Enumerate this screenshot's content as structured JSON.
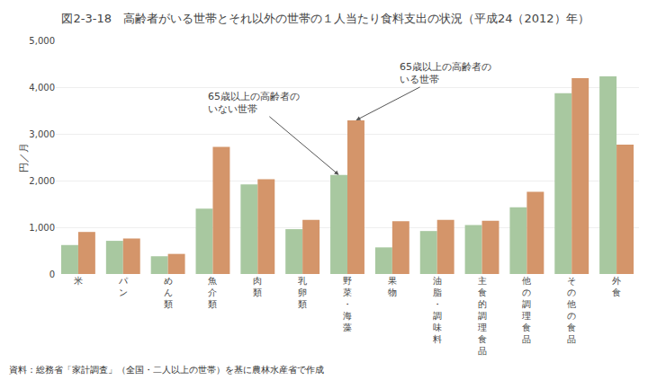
{
  "chart_data": {
    "type": "bar",
    "title": "図2-3-18　高齢者がいる世帯とそれ以外の世帯の１人当たり食料支出の状況（平成24（2012）年）",
    "y_label": "円／月",
    "categories": [
      "米",
      "パ\nン",
      "め\nん\n類",
      "魚\n介\n類",
      "肉\n類",
      "乳\n卵\n類",
      "野\n菜\n・\n海\n藻",
      "果\n物",
      "油\n脂\n・\n調\n味\n料",
      "主\n食\n的\n調\n理\n食\n品",
      "他\nの\n調\n理\n食\n品",
      "そ\nの\n他\nの\n食\n品",
      "外\n食"
    ],
    "series": [
      {
        "color": "#a8c8a0",
        "values": [
          620,
          710,
          380,
          1400,
          1920,
          960,
          2120,
          570,
          920,
          1050,
          1430,
          3870,
          4230
        ],
        "annotation": {
          "text": "65歳以上の高齢者の\nいない世帯",
          "category": "野\n菜\n・\n海\n藻"
        }
      },
      {
        "color": "#d4956a",
        "values": [
          900,
          760,
          430,
          2720,
          2030,
          1160,
          3290,
          1130,
          1160,
          1140,
          1760,
          4190,
          2770
        ],
        "annotation": {
          "text": "65歳以上の高齢者の\nいる世帯",
          "category": "野\n菜\n・\n海\n藻"
        }
      }
    ],
    "ylim": [
      0,
      5000
    ],
    "yticks": [
      0,
      {
        "value": 1000,
        "label": "1,000"
      },
      {
        "value": 2000,
        "label": "2,000"
      },
      {
        "value": 3000,
        "label": "3,000"
      },
      {
        "value": 4000,
        "label": "4,000"
      },
      {
        "value": 5000,
        "label": "5,000"
      }
    ],
    "grid": true,
    "source": "資料：総務省「家計調査」（全国・二人以上の世帯）を基に農林水産省で作成"
  }
}
